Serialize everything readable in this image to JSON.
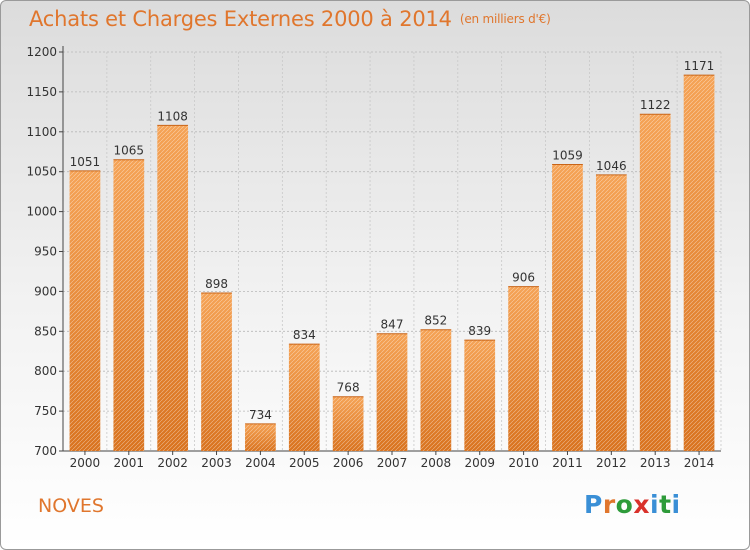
{
  "title": "Achats et Charges Externes 2000 à 2014",
  "subtitle": "(en milliers d'€)",
  "commune": "NOVES",
  "logo": {
    "letters": [
      "P",
      "r",
      "o",
      "x",
      "i",
      "t",
      "i"
    ],
    "colors": [
      "#3a8fd6",
      "#e0762d",
      "#2e9b3a",
      "#d9312b",
      "#3a8fd6",
      "#2e9b3a",
      "#3a8fd6"
    ]
  },
  "colors": {
    "bar_top": "#f5a356",
    "bar_bottom": "#d9731f",
    "text_accent": "#e0762d"
  },
  "chart_data": {
    "type": "bar",
    "categories": [
      "2000",
      "2001",
      "2002",
      "2003",
      "2004",
      "2005",
      "2006",
      "2007",
      "2008",
      "2009",
      "2010",
      "2011",
      "2012",
      "2013",
      "2014"
    ],
    "values": [
      1051,
      1065,
      1108,
      898,
      734,
      834,
      768,
      847,
      852,
      839,
      906,
      1059,
      1046,
      1122,
      1171
    ],
    "ylim": [
      700,
      1200
    ],
    "yticks": [
      700,
      750,
      800,
      850,
      900,
      950,
      1000,
      1050,
      1100,
      1150,
      1200
    ],
    "grid": true
  }
}
